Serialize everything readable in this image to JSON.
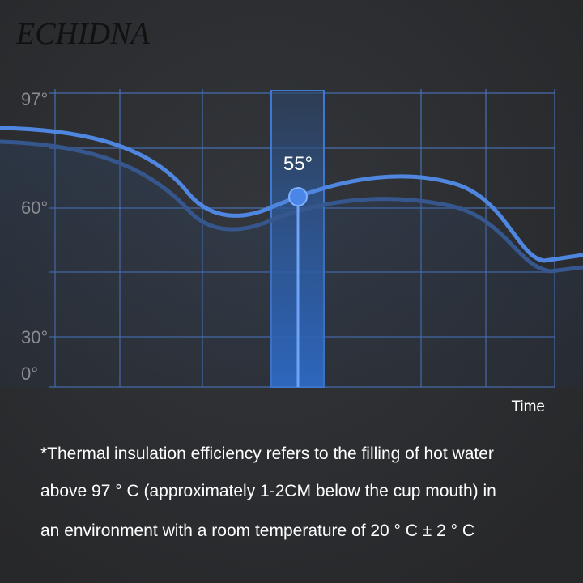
{
  "brand": "ECHIDNA",
  "axis": {
    "tick_labels": [
      "97°",
      "60°",
      "30°",
      "0°"
    ],
    "x_label": "Time"
  },
  "marker": {
    "label": "55°"
  },
  "footnote": [
    "*Thermal insulation efficiency refers to the filling of hot water",
    "above 97 ° C (approximately 1-2CM below the cup mouth) in",
    "an environment with a room temperature of 20 ° C ± 2 ° C"
  ]
}
